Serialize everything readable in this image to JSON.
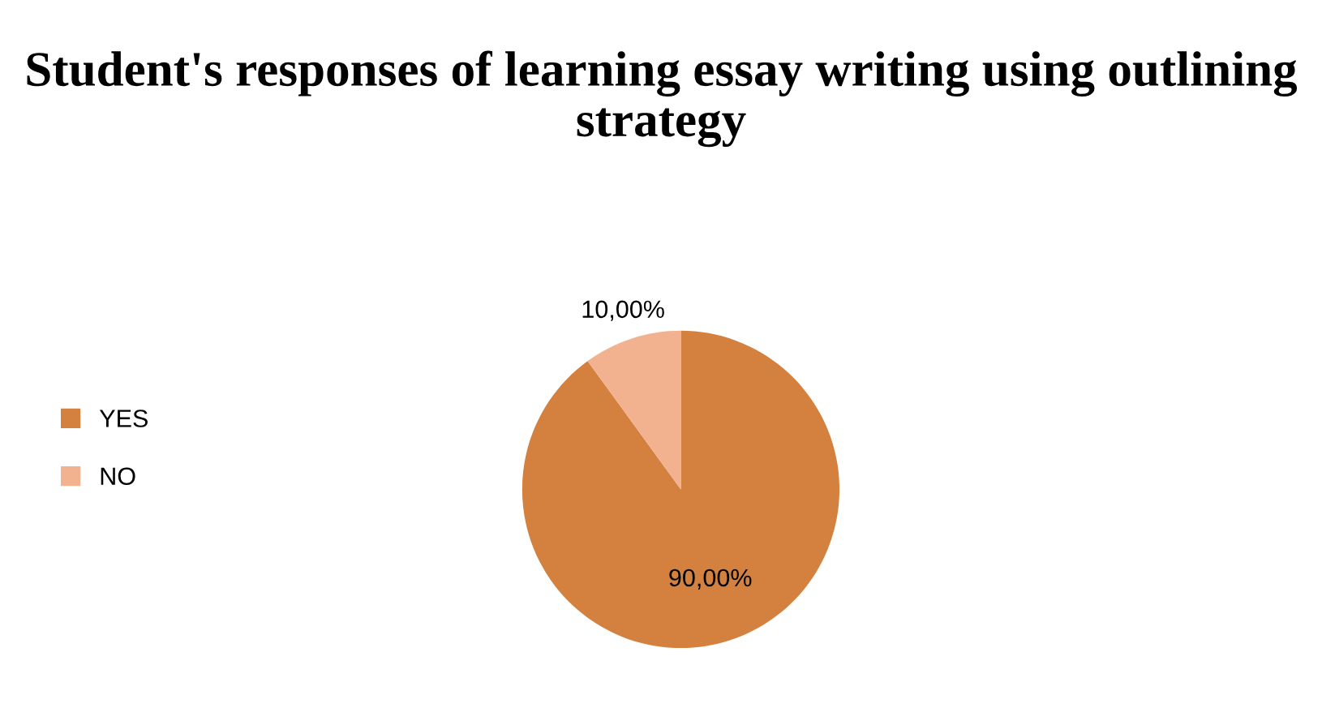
{
  "chart_data": {
    "type": "pie",
    "title": "Student's responses of learning essay writing using outlining strategy",
    "categories": [
      "YES",
      "NO"
    ],
    "values": [
      90,
      10
    ],
    "value_labels": [
      "90,00%",
      "10,00%"
    ],
    "colors": [
      "#d4813f",
      "#f2b28f"
    ],
    "legend": "left"
  }
}
